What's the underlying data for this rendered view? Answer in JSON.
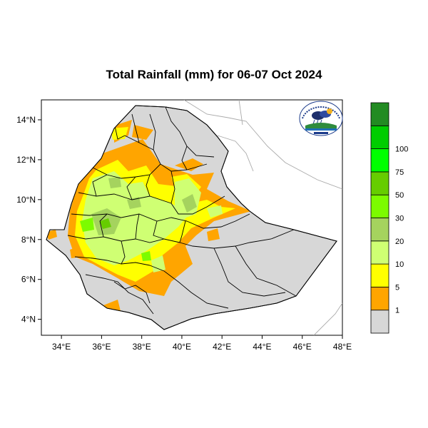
{
  "title": "Total Rainfall (mm) for 06-07 Oct 2024",
  "map": {
    "region": "Ethiopia",
    "lon_range": [
      33,
      48
    ],
    "lat_range": [
      3.2,
      15
    ]
  },
  "axes": {
    "x_ticks": [
      {
        "value": 34,
        "label": "34°E"
      },
      {
        "value": 36,
        "label": "36°E"
      },
      {
        "value": 38,
        "label": "38°E"
      },
      {
        "value": 40,
        "label": "40°E"
      },
      {
        "value": 42,
        "label": "42°E"
      },
      {
        "value": 44,
        "label": "44°E"
      },
      {
        "value": 46,
        "label": "46°E"
      },
      {
        "value": 48,
        "label": "48°E"
      }
    ],
    "y_ticks": [
      {
        "value": 14,
        "label": "14°N"
      },
      {
        "value": 12,
        "label": "12°N"
      },
      {
        "value": 10,
        "label": "10°N"
      },
      {
        "value": 8,
        "label": "8°N"
      },
      {
        "value": 6,
        "label": "6°N"
      },
      {
        "value": 4,
        "label": "4°N"
      }
    ]
  },
  "legend": {
    "colors": [
      "#d7d7d7",
      "#ffa500",
      "#ffff00",
      "#cfff73",
      "#a5d35e",
      "#7cfc00",
      "#66cd00",
      "#00ff00",
      "#00cd00",
      "#228b22"
    ],
    "labels": [
      "1",
      "5",
      "10",
      "20",
      "30",
      "50",
      "75",
      "100"
    ]
  },
  "colors": {
    "land": "#d7d7d7",
    "orange": "#ffa500",
    "yellow": "#ffff00",
    "light_green": "#cfff73",
    "sage": "#a5d35e",
    "bright_green": "#7cfc00",
    "dark_green": "#66cd00"
  }
}
